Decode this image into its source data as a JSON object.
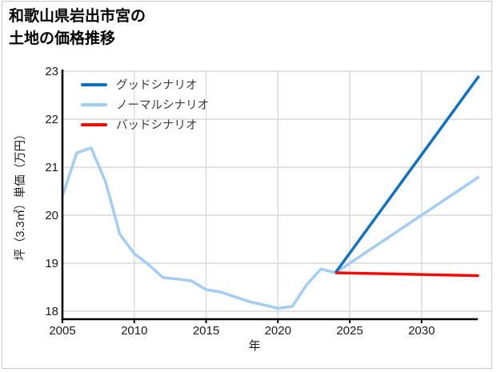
{
  "frame": {
    "background": "#ffffff",
    "border_color": "#cbcbcb"
  },
  "title": {
    "line1": "和歌山県岩出市宮の",
    "line2": "土地の価格推移"
  },
  "axes": {
    "x_label": "年",
    "y_label": "坪（3.3㎡）単価（万円）",
    "x_tick_labels": [
      "2005",
      "2010",
      "2015",
      "2020",
      "2025",
      "2030"
    ],
    "y_tick_labels": [
      "18",
      "19",
      "20",
      "21",
      "22",
      "23"
    ]
  },
  "legend": {
    "items": [
      {
        "id": "good-scenario",
        "label": "グッドシナリオ",
        "color": "#1272c2"
      },
      {
        "id": "normal-scenario",
        "label": "ノーマルシナリオ",
        "color": "#a4cdf4"
      },
      {
        "id": "bad-scenario",
        "label": "バッドシナリオ",
        "color": "#f50b06"
      }
    ]
  },
  "colors": {
    "grid": "#d9d9d9",
    "axis": "#000000",
    "tick_text": "#1a1a1a"
  },
  "chart_data": {
    "type": "line",
    "title": "和歌山県岩出市宮の土地の価格推移",
    "xlabel": "年",
    "ylabel": "坪（3.3㎡）単価（万円）",
    "x_ticks": [
      2005,
      2010,
      2015,
      2020,
      2025,
      2030
    ],
    "y_ticks": [
      18,
      19,
      20,
      21,
      22,
      23
    ],
    "xlim": [
      2004.8,
      2035
    ],
    "ylim": [
      17.85,
      23.05
    ],
    "grid": true,
    "legend_position": "upper-left",
    "series": [
      {
        "name": "historical",
        "in_legend": false,
        "color": "#a4cdf4",
        "x": [
          2005,
          2006,
          2007,
          2008,
          2009,
          2010,
          2011,
          2012,
          2013,
          2014,
          2015,
          2016,
          2017,
          2018,
          2019,
          2020,
          2021,
          2022,
          2023,
          2024
        ],
        "y": [
          20.4,
          21.3,
          21.4,
          20.7,
          19.6,
          19.2,
          18.97,
          18.7,
          18.67,
          18.63,
          18.45,
          18.4,
          18.3,
          18.2,
          18.13,
          18.06,
          18.1,
          18.55,
          18.88,
          18.8
        ]
      },
      {
        "name": "normal-scenario",
        "in_legend": true,
        "legend_label": "ノーマルシナリオ",
        "color": "#a4cdf4",
        "x": [
          2024,
          2034
        ],
        "y": [
          18.8,
          20.8
        ]
      },
      {
        "name": "good-scenario",
        "in_legend": true,
        "legend_label": "グッドシナリオ",
        "color": "#1272c2",
        "x": [
          2024,
          2034
        ],
        "y": [
          18.8,
          22.9
        ]
      },
      {
        "name": "bad-scenario",
        "in_legend": true,
        "legend_label": "バッドシナリオ",
        "color": "#f50b06",
        "x": [
          2024,
          2034
        ],
        "y": [
          18.8,
          18.74
        ]
      }
    ]
  }
}
